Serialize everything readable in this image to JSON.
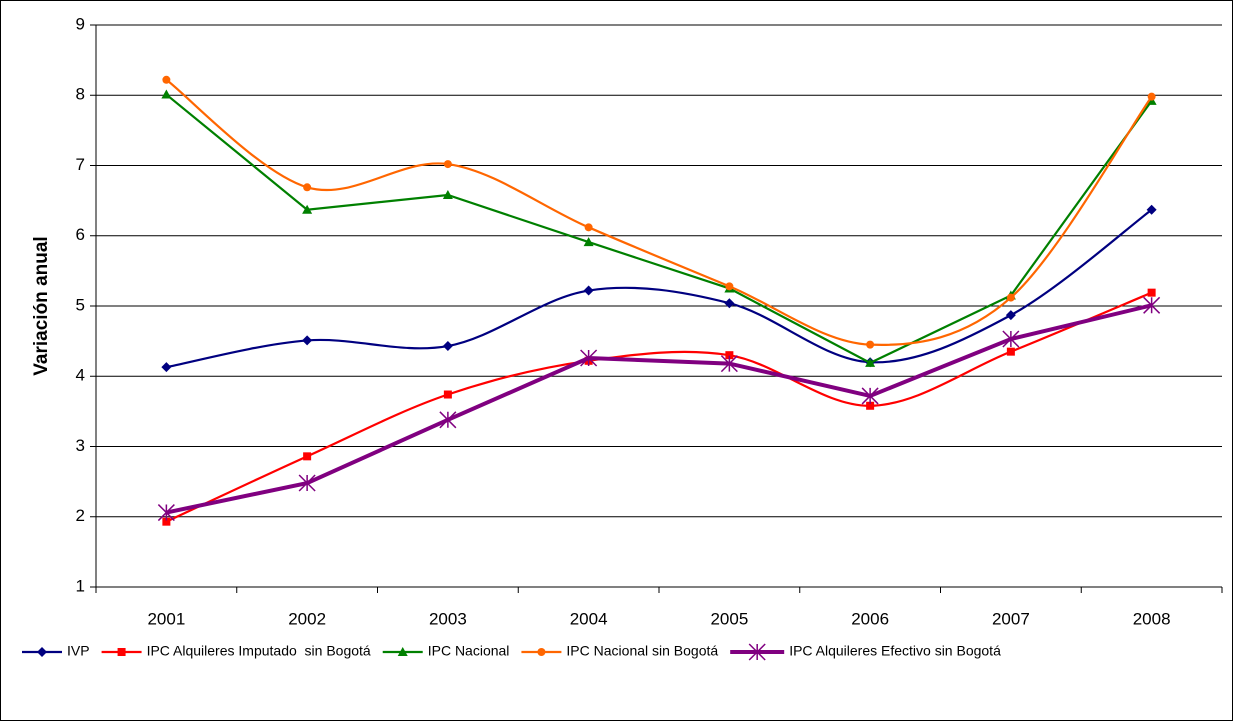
{
  "chart_data": {
    "type": "line",
    "y_label": "Variación anual",
    "categories": [
      "2001",
      "2002",
      "2003",
      "2004",
      "2005",
      "2006",
      "2007",
      "2008"
    ],
    "ylim": [
      1,
      9
    ],
    "yticks": [
      1,
      2,
      3,
      4,
      5,
      6,
      7,
      8,
      9
    ],
    "grid": true,
    "legend": "bottom",
    "series": [
      {
        "name": "IVP",
        "color": "#000080",
        "marker": "diamond",
        "smooth": true,
        "values": [
          4.13,
          4.51,
          4.43,
          5.22,
          5.04,
          4.2,
          4.87,
          6.37
        ]
      },
      {
        "name": "IPC Alquileres Imputado  sin Bogotá",
        "color": "#ff0000",
        "marker": "square",
        "smooth": true,
        "values": [
          1.93,
          2.86,
          3.74,
          4.22,
          4.3,
          3.58,
          4.35,
          5.19
        ]
      },
      {
        "name": "IPC Nacional",
        "color": "#008000",
        "marker": "triangle",
        "smooth": false,
        "values": [
          8.01,
          6.37,
          6.58,
          5.91,
          5.25,
          4.19,
          5.15,
          7.92
        ]
      },
      {
        "name": "IPC Nacional sin Bogotá",
        "color": "#ff6600",
        "marker": "circle",
        "smooth": true,
        "values": [
          8.22,
          6.69,
          7.02,
          6.12,
          5.28,
          4.45,
          5.12,
          7.98
        ]
      },
      {
        "name": "IPC Alquileres Efectivo sin Bogotá",
        "color": "#800080",
        "marker": "star",
        "smooth": false,
        "values": [
          2.06,
          2.48,
          3.38,
          4.26,
          4.18,
          3.72,
          4.53,
          5.01
        ]
      }
    ]
  }
}
